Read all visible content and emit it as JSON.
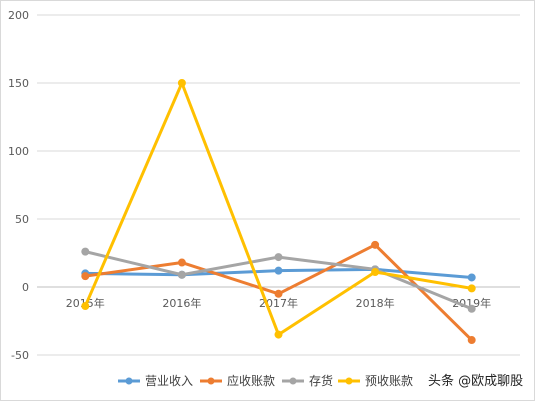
{
  "chart_data": {
    "type": "line",
    "title": "",
    "xlabel": "",
    "ylabel": "",
    "categories": [
      "2015年",
      "2016年",
      "2017年",
      "2018年",
      "2019年"
    ],
    "ylim": [
      -50,
      200
    ],
    "yticks": [
      "200",
      "150",
      "100",
      "50",
      "0",
      "-50"
    ],
    "grid": true,
    "legend_position": "bottom",
    "series": [
      {
        "name": "营业收入",
        "color": "#5b9bd5",
        "values": [
          10,
          9,
          12,
          13,
          7
        ]
      },
      {
        "name": "应收账款",
        "color": "#ed7d31",
        "values": [
          8,
          18,
          -5,
          31,
          -39
        ]
      },
      {
        "name": "存货",
        "color": "#a5a5a5",
        "values": [
          26,
          9,
          22,
          13,
          -16
        ]
      },
      {
        "name": "预收账款",
        "color": "#ffc000",
        "values": [
          -14,
          150,
          -35,
          11,
          -1
        ]
      }
    ]
  },
  "watermark": {
    "text": "头条 @欧成聊股"
  }
}
